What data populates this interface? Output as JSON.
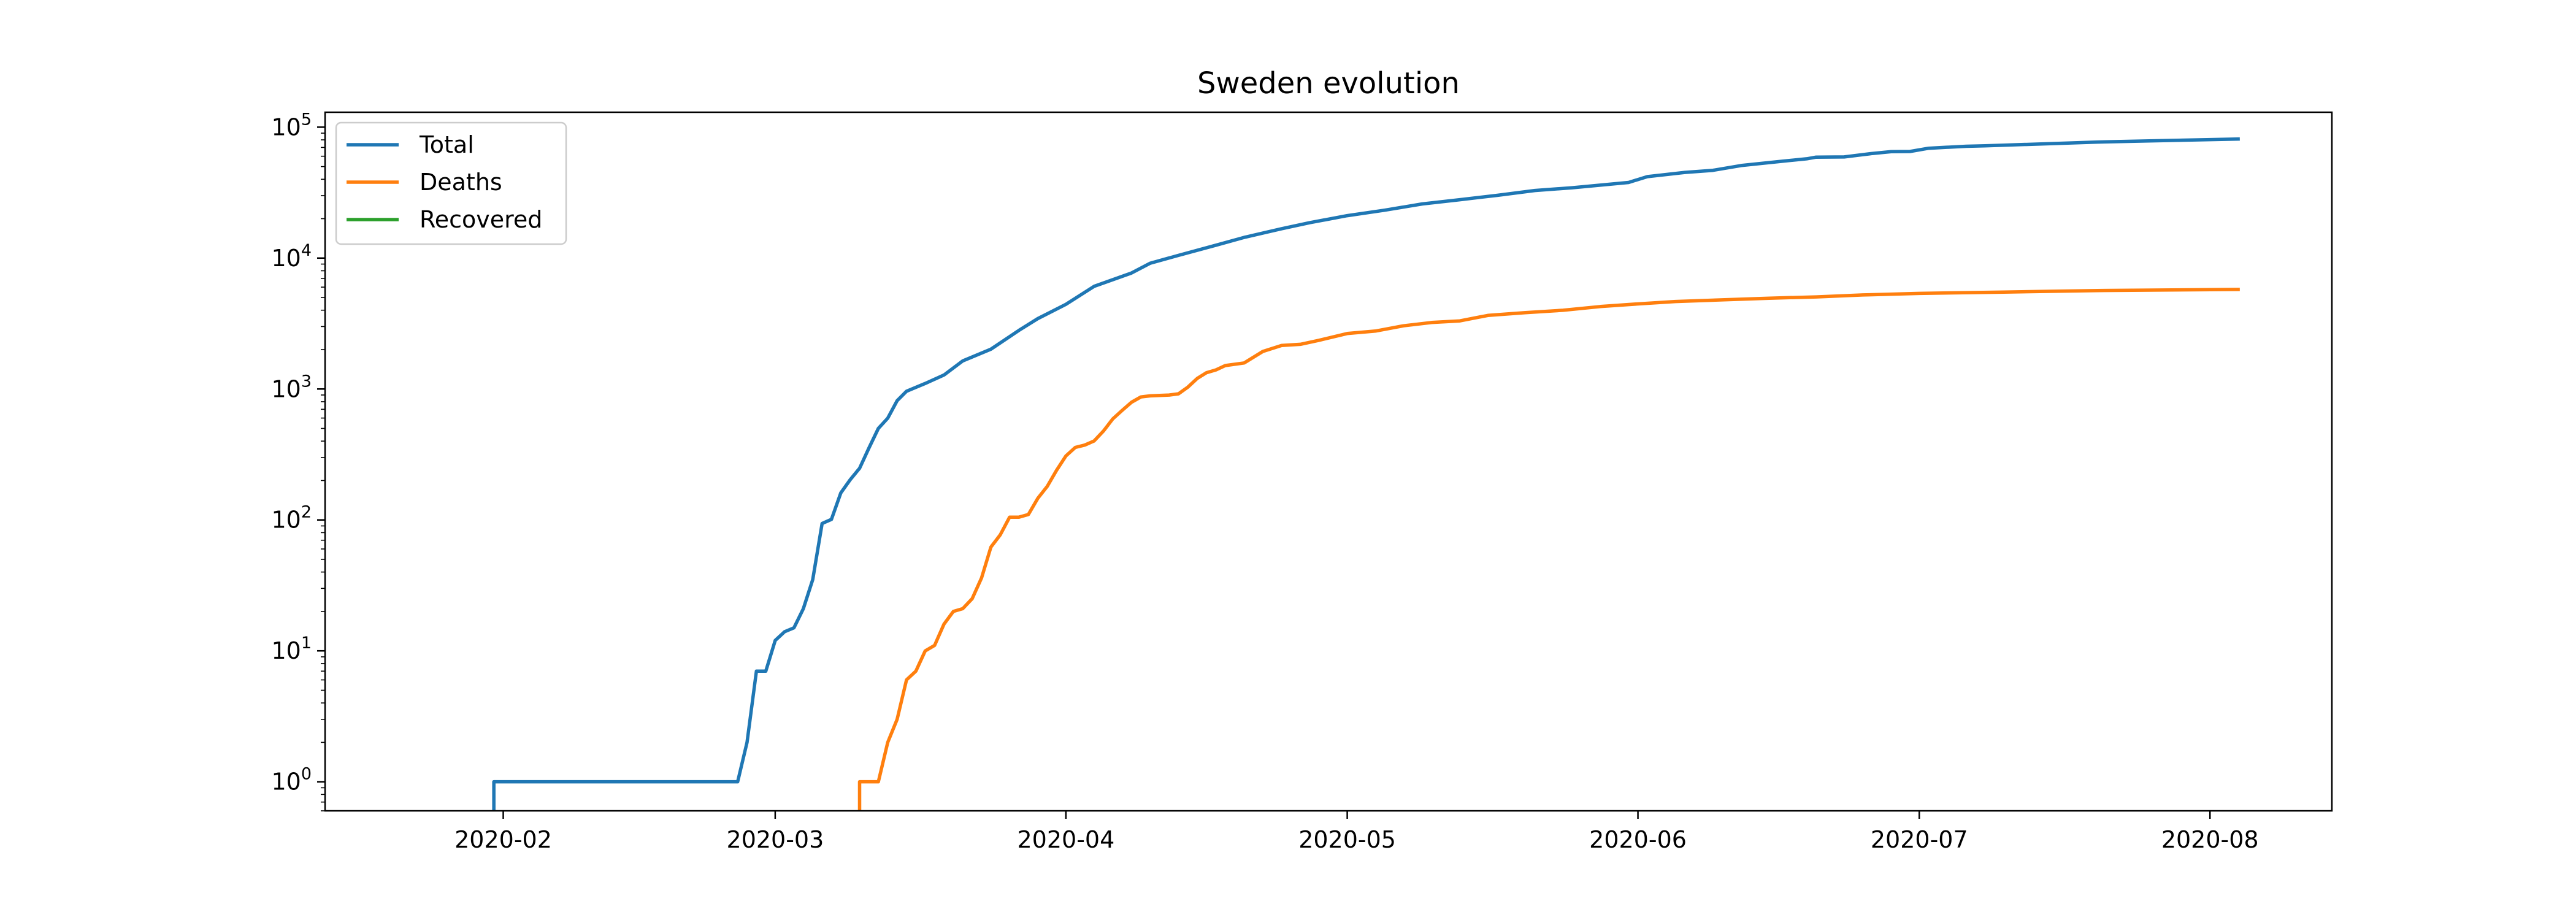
{
  "chart_data": {
    "type": "line",
    "title": "Sweden evolution",
    "xlabel": "",
    "ylabel": "",
    "y_scale": "log",
    "ylim": [
      0.6,
      130000
    ],
    "xlim": [
      "2020-01-13",
      "2020-08-14"
    ],
    "grid": false,
    "legend_position": "top-left",
    "x_ticks": [
      {
        "date": "2020-02-01",
        "label": "2020-02"
      },
      {
        "date": "2020-03-01",
        "label": "2020-03"
      },
      {
        "date": "2020-04-01",
        "label": "2020-04"
      },
      {
        "date": "2020-05-01",
        "label": "2020-05"
      },
      {
        "date": "2020-06-01",
        "label": "2020-06"
      },
      {
        "date": "2020-07-01",
        "label": "2020-07"
      },
      {
        "date": "2020-08-01",
        "label": "2020-08"
      }
    ],
    "y_ticks": [
      {
        "value": 1,
        "base": "10",
        "exp": "0"
      },
      {
        "value": 10,
        "base": "10",
        "exp": "1"
      },
      {
        "value": 100,
        "base": "10",
        "exp": "2"
      },
      {
        "value": 1000,
        "base": "10",
        "exp": "3"
      },
      {
        "value": 10000,
        "base": "10",
        "exp": "4"
      },
      {
        "value": 100000,
        "base": "10",
        "exp": "5"
      }
    ],
    "series": [
      {
        "name": "Total",
        "color": "#1f77b4",
        "points": [
          [
            "2020-01-31",
            0
          ],
          [
            "2020-01-31",
            1
          ],
          [
            "2020-02-26",
            1
          ],
          [
            "2020-02-27",
            2
          ],
          [
            "2020-02-28",
            7
          ],
          [
            "2020-02-29",
            7
          ],
          [
            "2020-03-01",
            12
          ],
          [
            "2020-03-02",
            14
          ],
          [
            "2020-03-03",
            15
          ],
          [
            "2020-03-04",
            21
          ],
          [
            "2020-03-05",
            35
          ],
          [
            "2020-03-06",
            94
          ],
          [
            "2020-03-07",
            101
          ],
          [
            "2020-03-08",
            161
          ],
          [
            "2020-03-09",
            203
          ],
          [
            "2020-03-10",
            248
          ],
          [
            "2020-03-11",
            355
          ],
          [
            "2020-03-12",
            500
          ],
          [
            "2020-03-13",
            599
          ],
          [
            "2020-03-14",
            814
          ],
          [
            "2020-03-15",
            961
          ],
          [
            "2020-03-17",
            1103
          ],
          [
            "2020-03-19",
            1279
          ],
          [
            "2020-03-21",
            1639
          ],
          [
            "2020-03-24",
            2016
          ],
          [
            "2020-03-27",
            2806
          ],
          [
            "2020-03-29",
            3447
          ],
          [
            "2020-04-01",
            4435
          ],
          [
            "2020-04-04",
            6078
          ],
          [
            "2020-04-08",
            7693
          ],
          [
            "2020-04-10",
            9141
          ],
          [
            "2020-04-13",
            10483
          ],
          [
            "2020-04-17",
            12540
          ],
          [
            "2020-04-20",
            14385
          ],
          [
            "2020-04-24",
            16755
          ],
          [
            "2020-04-27",
            18640
          ],
          [
            "2020-05-01",
            21092
          ],
          [
            "2020-05-05",
            23216
          ],
          [
            "2020-05-09",
            25921
          ],
          [
            "2020-05-13",
            27909
          ],
          [
            "2020-05-17",
            30143
          ],
          [
            "2020-05-21",
            32809
          ],
          [
            "2020-05-25",
            34440
          ],
          [
            "2020-05-31",
            37814
          ],
          [
            "2020-06-02",
            41883
          ],
          [
            "2020-06-06",
            45133
          ],
          [
            "2020-06-09",
            46814
          ],
          [
            "2020-06-12",
            50931
          ],
          [
            "2020-06-16",
            54562
          ],
          [
            "2020-06-19",
            57346
          ],
          [
            "2020-06-20",
            59000
          ],
          [
            "2020-06-23",
            59200
          ],
          [
            "2020-06-26",
            63000
          ],
          [
            "2020-06-28",
            65000
          ],
          [
            "2020-06-30",
            65200
          ],
          [
            "2020-07-02",
            69000
          ],
          [
            "2020-07-06",
            71419
          ],
          [
            "2020-07-08",
            72000
          ],
          [
            "2020-07-13",
            74000
          ],
          [
            "2020-07-20",
            77000
          ],
          [
            "2020-07-27",
            79000
          ],
          [
            "2020-08-04",
            81181
          ]
        ]
      },
      {
        "name": "Deaths",
        "color": "#ff7f0e",
        "points": [
          [
            "2020-03-10",
            0
          ],
          [
            "2020-03-10",
            1
          ],
          [
            "2020-03-12",
            1
          ],
          [
            "2020-03-13",
            2
          ],
          [
            "2020-03-14",
            3
          ],
          [
            "2020-03-15",
            6
          ],
          [
            "2020-03-16",
            7
          ],
          [
            "2020-03-17",
            10
          ],
          [
            "2020-03-18",
            11
          ],
          [
            "2020-03-19",
            16
          ],
          [
            "2020-03-20",
            20
          ],
          [
            "2020-03-21",
            21
          ],
          [
            "2020-03-22",
            25
          ],
          [
            "2020-03-23",
            36
          ],
          [
            "2020-03-24",
            62
          ],
          [
            "2020-03-25",
            77
          ],
          [
            "2020-03-26",
            105
          ],
          [
            "2020-03-27",
            105
          ],
          [
            "2020-03-28",
            110
          ],
          [
            "2020-03-29",
            146
          ],
          [
            "2020-03-30",
            180
          ],
          [
            "2020-03-31",
            239
          ],
          [
            "2020-04-01",
            308
          ],
          [
            "2020-04-02",
            358
          ],
          [
            "2020-04-03",
            373
          ],
          [
            "2020-04-04",
            401
          ],
          [
            "2020-04-05",
            477
          ],
          [
            "2020-04-06",
            591
          ],
          [
            "2020-04-07",
            687
          ],
          [
            "2020-04-08",
            793
          ],
          [
            "2020-04-09",
            870
          ],
          [
            "2020-04-10",
            887
          ],
          [
            "2020-04-12",
            899
          ],
          [
            "2020-04-13",
            919
          ],
          [
            "2020-04-14",
            1033
          ],
          [
            "2020-04-15",
            1203
          ],
          [
            "2020-04-16",
            1333
          ],
          [
            "2020-04-17",
            1400
          ],
          [
            "2020-04-18",
            1511
          ],
          [
            "2020-04-20",
            1580
          ],
          [
            "2020-04-22",
            1937
          ],
          [
            "2020-04-24",
            2152
          ],
          [
            "2020-04-26",
            2194
          ],
          [
            "2020-04-28",
            2355
          ],
          [
            "2020-05-01",
            2653
          ],
          [
            "2020-05-04",
            2769
          ],
          [
            "2020-05-07",
            3040
          ],
          [
            "2020-05-10",
            3220
          ],
          [
            "2020-05-13",
            3313
          ],
          [
            "2020-05-16",
            3646
          ],
          [
            "2020-05-20",
            3831
          ],
          [
            "2020-05-24",
            3992
          ],
          [
            "2020-05-28",
            4266
          ],
          [
            "2020-06-01",
            4468
          ],
          [
            "2020-06-05",
            4659
          ],
          [
            "2020-06-10",
            4795
          ],
          [
            "2020-06-15",
            4939
          ],
          [
            "2020-06-20",
            5053
          ],
          [
            "2020-06-25",
            5230
          ],
          [
            "2020-07-01",
            5370
          ],
          [
            "2020-07-10",
            5500
          ],
          [
            "2020-07-20",
            5650
          ],
          [
            "2020-08-04",
            5760
          ]
        ]
      },
      {
        "name": "Recovered",
        "color": "#2ca02c",
        "points": []
      }
    ]
  }
}
